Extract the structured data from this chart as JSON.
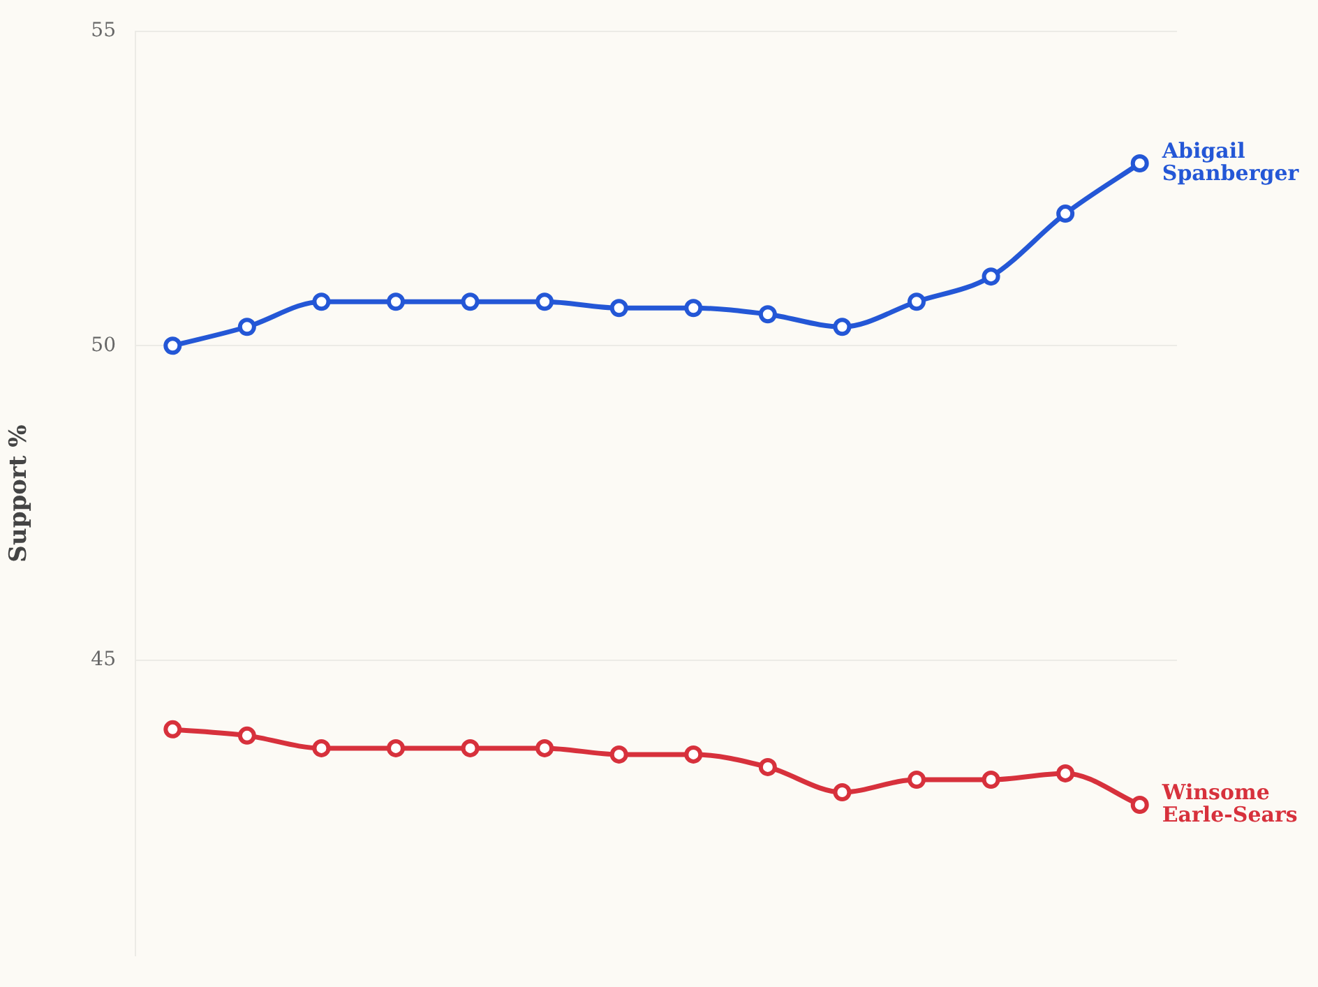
{
  "chart_data": {
    "type": "line",
    "ylabel": "Support %",
    "categories": [
      null,
      null,
      null,
      null,
      null,
      null,
      null,
      null,
      null,
      null,
      null,
      null,
      null,
      null
    ],
    "series": [
      {
        "name": "Abigail Spanberger",
        "color": "#2457d6",
        "values": [
          50.0,
          50.3,
          50.7,
          50.7,
          50.7,
          50.7,
          50.6,
          50.6,
          50.5,
          50.3,
          50.7,
          51.1,
          52.1,
          52.9
        ]
      },
      {
        "name": "Winsome Earle-Sears",
        "color": "#d7313c",
        "values": [
          43.9,
          43.8,
          43.6,
          43.6,
          43.6,
          43.6,
          43.5,
          43.5,
          43.3,
          42.9,
          43.1,
          43.1,
          43.2,
          42.7
        ]
      }
    ],
    "ylim": [
      40.3,
      55
    ],
    "yticks": [
      45,
      50,
      55
    ],
    "grid": "y",
    "legend": false,
    "marker": "circle",
    "line_style": "solid",
    "tick_labels": "y"
  }
}
